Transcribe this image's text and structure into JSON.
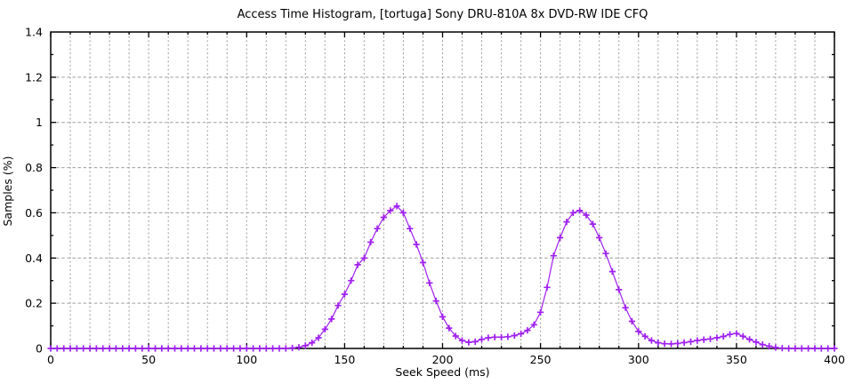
{
  "chart_data": {
    "type": "line",
    "title": "Access Time Histogram, [tortuga] Sony DRU-810A 8x DVD-RW IDE CFQ",
    "xlabel": "Seek Speed (ms)",
    "ylabel": "Samples (%)",
    "xlim": [
      0,
      400
    ],
    "ylim": [
      0,
      1.4
    ],
    "xticks": [
      0,
      50,
      100,
      150,
      200,
      250,
      300,
      350,
      400
    ],
    "xtick_labels": [
      "0",
      "50",
      "100",
      "150",
      "200",
      "250",
      "300",
      "350",
      "400"
    ],
    "yticks": [
      0,
      0.2,
      0.4,
      0.6,
      0.8,
      1.0,
      1.2,
      1.4
    ],
    "ytick_labels": [
      "0",
      "0.2",
      "0.4",
      "0.6",
      "0.8",
      "1",
      "1.2",
      "1.4"
    ],
    "x_minor_step": 10,
    "y_minor_step": 0.1,
    "grid": {
      "style": "dotted",
      "x_step": 10,
      "y_step": 0.2,
      "shown": true
    },
    "legend": "none",
    "marker": "plus",
    "colors": {
      "series": "#a020f0",
      "grid": "#9e9e9e",
      "axis": "#000000",
      "background": "#ffffff",
      "text": "#000000"
    },
    "series": [
      {
        "name": "access time histogram",
        "points": [
          [
            0,
            0
          ],
          [
            3.33,
            0
          ],
          [
            6.67,
            0
          ],
          [
            10,
            0
          ],
          [
            13.33,
            0
          ],
          [
            16.67,
            0
          ],
          [
            20,
            0
          ],
          [
            23.33,
            0
          ],
          [
            26.67,
            0
          ],
          [
            30,
            0
          ],
          [
            33.33,
            0
          ],
          [
            36.67,
            0
          ],
          [
            40,
            0
          ],
          [
            43.33,
            0
          ],
          [
            46.67,
            0
          ],
          [
            50,
            0
          ],
          [
            53.33,
            0
          ],
          [
            56.67,
            0
          ],
          [
            60,
            0
          ],
          [
            63.33,
            0
          ],
          [
            66.67,
            0
          ],
          [
            70,
            0
          ],
          [
            73.33,
            0
          ],
          [
            76.67,
            0
          ],
          [
            80,
            0
          ],
          [
            83.33,
            0
          ],
          [
            86.67,
            0
          ],
          [
            90,
            0
          ],
          [
            93.33,
            0
          ],
          [
            96.67,
            0
          ],
          [
            100,
            0
          ],
          [
            103.33,
            0
          ],
          [
            106.67,
            0
          ],
          [
            110,
            0
          ],
          [
            113.33,
            0
          ],
          [
            116.67,
            0
          ],
          [
            120,
            0
          ],
          [
            123.33,
            0.002
          ],
          [
            126.67,
            0.005
          ],
          [
            130,
            0.012
          ],
          [
            133.33,
            0.025
          ],
          [
            136.67,
            0.047
          ],
          [
            140,
            0.085
          ],
          [
            143.33,
            0.13
          ],
          [
            146.67,
            0.19
          ],
          [
            150,
            0.24
          ],
          [
            153.33,
            0.3
          ],
          [
            156.67,
            0.37
          ],
          [
            160,
            0.4
          ],
          [
            163.33,
            0.47
          ],
          [
            166.67,
            0.53
          ],
          [
            170,
            0.58
          ],
          [
            173.33,
            0.61
          ],
          [
            176.67,
            0.63
          ],
          [
            180,
            0.6
          ],
          [
            183.33,
            0.53
          ],
          [
            186.67,
            0.46
          ],
          [
            190,
            0.38
          ],
          [
            193.33,
            0.29
          ],
          [
            196.67,
            0.21
          ],
          [
            200,
            0.14
          ],
          [
            203.33,
            0.09
          ],
          [
            206.67,
            0.055
          ],
          [
            210,
            0.035
          ],
          [
            213.33,
            0.027
          ],
          [
            216.67,
            0.03
          ],
          [
            220,
            0.04
          ],
          [
            223.33,
            0.047
          ],
          [
            226.67,
            0.05
          ],
          [
            230,
            0.05
          ],
          [
            233.33,
            0.052
          ],
          [
            236.67,
            0.057
          ],
          [
            240,
            0.065
          ],
          [
            243.33,
            0.08
          ],
          [
            246.67,
            0.105
          ],
          [
            250,
            0.16
          ],
          [
            253.33,
            0.27
          ],
          [
            256.67,
            0.41
          ],
          [
            260,
            0.49
          ],
          [
            263.33,
            0.56
          ],
          [
            266.67,
            0.6
          ],
          [
            270,
            0.61
          ],
          [
            273.33,
            0.59
          ],
          [
            276.67,
            0.55
          ],
          [
            280,
            0.49
          ],
          [
            283.33,
            0.42
          ],
          [
            286.67,
            0.34
          ],
          [
            290,
            0.26
          ],
          [
            293.33,
            0.18
          ],
          [
            296.67,
            0.12
          ],
          [
            300,
            0.075
          ],
          [
            303.33,
            0.054
          ],
          [
            306.67,
            0.035
          ],
          [
            310,
            0.025
          ],
          [
            313.33,
            0.021
          ],
          [
            316.67,
            0.02
          ],
          [
            320,
            0.022
          ],
          [
            323.33,
            0.026
          ],
          [
            326.67,
            0.03
          ],
          [
            330,
            0.035
          ],
          [
            333.33,
            0.039
          ],
          [
            336.67,
            0.042
          ],
          [
            340,
            0.047
          ],
          [
            343.33,
            0.053
          ],
          [
            346.67,
            0.062
          ],
          [
            350,
            0.066
          ],
          [
            353.33,
            0.054
          ],
          [
            356.67,
            0.04
          ],
          [
            360,
            0.028
          ],
          [
            363.33,
            0.017
          ],
          [
            366.67,
            0.01
          ],
          [
            370,
            0.004
          ],
          [
            373.33,
            0.001
          ],
          [
            376.67,
            0
          ],
          [
            380,
            0
          ],
          [
            383.33,
            0
          ],
          [
            386.67,
            0
          ],
          [
            390,
            0
          ],
          [
            393.33,
            0
          ],
          [
            396.67,
            0
          ],
          [
            400,
            0
          ]
        ]
      }
    ]
  }
}
